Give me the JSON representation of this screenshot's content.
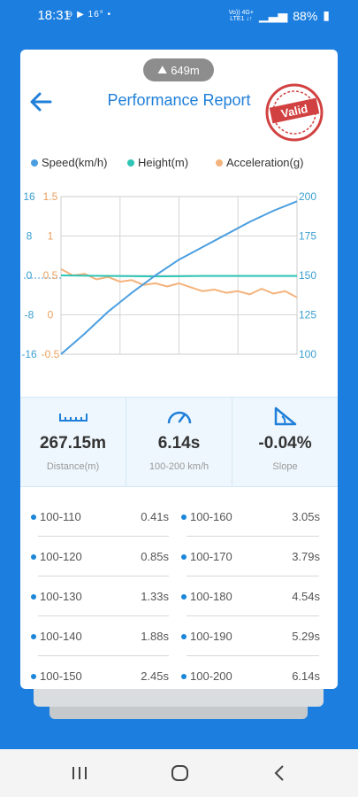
{
  "status_bar": {
    "time": "18:31",
    "temperature": "16°",
    "network_line1": "Vo)) 4G+",
    "network_line2": "LTE1 ↓↑",
    "battery": "88%"
  },
  "header": {
    "distance_badge": "649m",
    "title": "Performance Report",
    "stamp_text": "Valid"
  },
  "legend": [
    {
      "label": "Speed(km/h)",
      "color": "#4a9ee0"
    },
    {
      "label": "Height(m)",
      "color": "#2ec4b6"
    },
    {
      "label": "Acceleration(g)",
      "color": "#f4b37c"
    }
  ],
  "chart_data": {
    "type": "line",
    "series": [
      {
        "name": "Speed(km/h)",
        "color": "#4a9ee0",
        "axis": "right",
        "x": [
          0,
          0.1,
          0.2,
          0.3,
          0.4,
          0.5,
          0.6,
          0.7,
          0.8,
          0.9,
          1.0
        ],
        "values": [
          100,
          113,
          127,
          139,
          150,
          160,
          168,
          176,
          184,
          191,
          197
        ]
      },
      {
        "name": "Height(m)",
        "color": "#2ec4b6",
        "axis": "left_outer",
        "x": [
          0,
          0.2,
          0.4,
          0.6,
          0.8,
          1.0
        ],
        "values": [
          0,
          -0.1,
          -0.2,
          -0.1,
          -0.1,
          -0.1
        ]
      },
      {
        "name": "Acceleration(g)",
        "color": "#f4b37c",
        "axis": "left_inner",
        "x": [
          0,
          0.05,
          0.1,
          0.15,
          0.2,
          0.25,
          0.3,
          0.35,
          0.4,
          0.45,
          0.5,
          0.55,
          0.6,
          0.65,
          0.7,
          0.75,
          0.8,
          0.85,
          0.9,
          0.95,
          1.0
        ],
        "values": [
          0.58,
          0.5,
          0.52,
          0.45,
          0.48,
          0.42,
          0.44,
          0.38,
          0.4,
          0.36,
          0.4,
          0.35,
          0.3,
          0.32,
          0.28,
          0.3,
          0.26,
          0.33,
          0.27,
          0.3,
          0.22
        ]
      }
    ],
    "left_outer_ticks": [
      "16",
      "8",
      "0",
      "-8",
      "-16"
    ],
    "left_inner_ticks": [
      "1.5",
      "1",
      "0.5",
      "0",
      "-0.5"
    ],
    "right_ticks": [
      "200",
      "175",
      "150",
      "125",
      "100"
    ],
    "ylim_right": [
      100,
      200
    ],
    "ylim_left_outer": [
      -16,
      16
    ],
    "ylim_left_inner": [
      -0.5,
      1.5
    ],
    "grid": true
  },
  "stats": [
    {
      "icon": "ruler-icon",
      "value": "267.15m",
      "label": "Distance(m)"
    },
    {
      "icon": "speedometer-icon",
      "value": "6.14s",
      "label": "100-200 km/h"
    },
    {
      "icon": "slope-icon",
      "value": "-0.04%",
      "label": "Slope"
    }
  ],
  "splits": [
    {
      "left_range": "100-110",
      "left_time": "0.41s",
      "right_range": "100-160",
      "right_time": "3.05s"
    },
    {
      "left_range": "100-120",
      "left_time": "0.85s",
      "right_range": "100-170",
      "right_time": "3.79s"
    },
    {
      "left_range": "100-130",
      "left_time": "1.33s",
      "right_range": "100-180",
      "right_time": "4.54s"
    },
    {
      "left_range": "100-140",
      "left_time": "1.88s",
      "right_range": "100-190",
      "right_time": "5.29s"
    },
    {
      "left_range": "100-150",
      "left_time": "2.45s",
      "right_range": "100-200",
      "right_time": "6.14s"
    }
  ],
  "nav": {
    "recents": "recents-icon",
    "home": "home-icon",
    "back": "back-icon"
  }
}
